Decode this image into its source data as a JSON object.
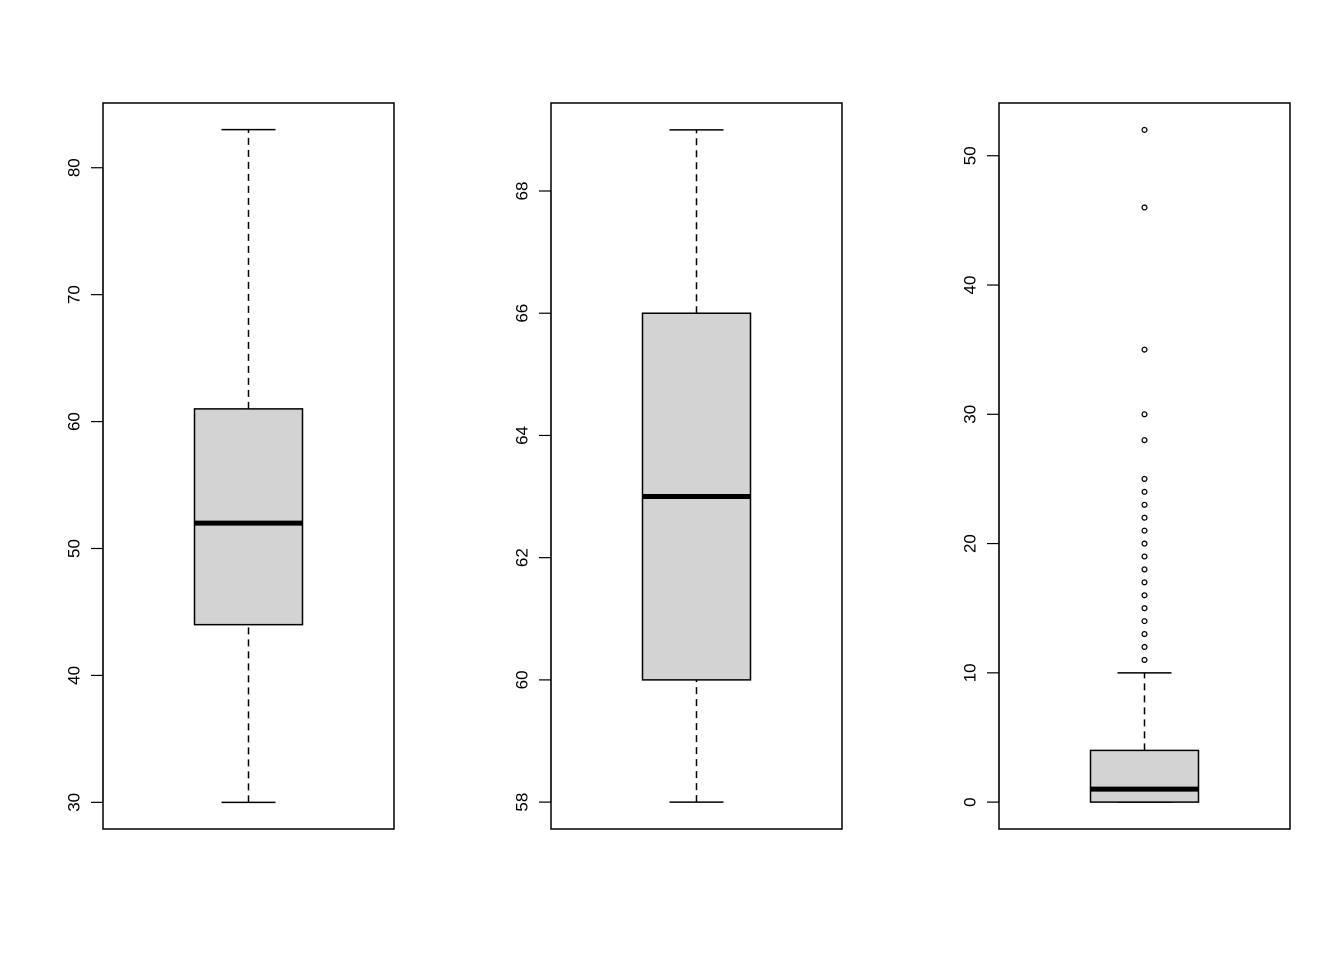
{
  "chart_data": [
    {
      "type": "box",
      "ylim": [
        27.9,
        85.1
      ],
      "yticks": [
        30,
        40,
        50,
        60,
        70,
        80
      ],
      "ytick_labels": [
        "30",
        "40",
        "50",
        "60",
        "70",
        "80"
      ],
      "whisker_low": 30,
      "q1": 44,
      "median": 52,
      "q3": 61,
      "whisker_high": 83,
      "outliers": []
    },
    {
      "type": "box",
      "ylim": [
        57.56,
        69.44
      ],
      "yticks": [
        58,
        60,
        62,
        64,
        66,
        68
      ],
      "ytick_labels": [
        "58",
        "60",
        "62",
        "64",
        "66",
        "68"
      ],
      "whisker_low": 58,
      "q1": 60,
      "median": 63,
      "q3": 66,
      "whisker_high": 69,
      "outliers": []
    },
    {
      "type": "box",
      "ylim": [
        -2.08,
        54.08
      ],
      "yticks": [
        0,
        10,
        20,
        30,
        40,
        50
      ],
      "ytick_labels": [
        "0",
        "10",
        "20",
        "30",
        "40",
        "50"
      ],
      "whisker_low": 0,
      "q1": 0,
      "median": 1,
      "q3": 4,
      "whisker_high": 10,
      "outliers": [
        11,
        12,
        13,
        14,
        15,
        16,
        17,
        18,
        19,
        20,
        21,
        22,
        23,
        24,
        25,
        28,
        30,
        35,
        46,
        52
      ]
    }
  ],
  "colors": {
    "box_fill": "#d3d3d3",
    "stroke": "#000000",
    "background": "#ffffff"
  }
}
